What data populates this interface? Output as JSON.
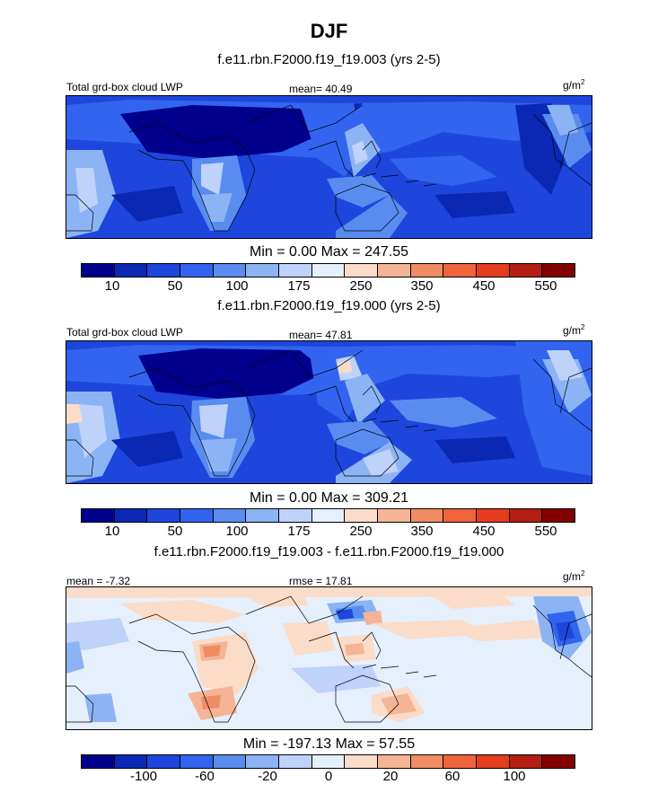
{
  "chart_data": [
    {
      "type": "heatmap",
      "title": "DJF",
      "subtitle": "f.e11.rbn.F2000.f19_f19.003 (yrs 2-5)",
      "left_label": "Total grd-box cloud LWP",
      "center_label": "mean=  40.49",
      "units": "g/m",
      "units_sup": "2",
      "minmax": "Min =   0.00 Max = 247.55",
      "min": 0.0,
      "max": 247.55,
      "mean": 40.49,
      "colorbar": {
        "colors": [
          "#00008c",
          "#0a28b4",
          "#1e46dc",
          "#3264f0",
          "#5a8cf0",
          "#8cb4f5",
          "#bed2fa",
          "#e6f0fc",
          "#fadcc8",
          "#f5b496",
          "#f08c64",
          "#f0643c",
          "#e63c1e",
          "#b41e14",
          "#820000"
        ],
        "ticks": [
          "10",
          "50",
          "100",
          "175",
          "250",
          "350",
          "450",
          "550"
        ]
      }
    },
    {
      "type": "heatmap",
      "subtitle": "f.e11.rbn.F2000.f19_f19.000 (yrs 2-5)",
      "left_label": "Total grd-box cloud LWP",
      "center_label": "mean=  47.81",
      "units": "g/m",
      "units_sup": "2",
      "minmax": "Min =   0.00 Max = 309.21",
      "min": 0.0,
      "max": 309.21,
      "mean": 47.81,
      "colorbar": {
        "colors": [
          "#00008c",
          "#0a28b4",
          "#1e46dc",
          "#3264f0",
          "#5a8cf0",
          "#8cb4f5",
          "#bed2fa",
          "#e6f0fc",
          "#fadcc8",
          "#f5b496",
          "#f08c64",
          "#f0643c",
          "#e63c1e",
          "#b41e14",
          "#820000"
        ],
        "ticks": [
          "10",
          "50",
          "100",
          "175",
          "250",
          "350",
          "450",
          "550"
        ]
      }
    },
    {
      "type": "heatmap",
      "subtitle": "f.e11.rbn.F2000.f19_f19.003 - f.e11.rbn.F2000.f19_f19.000",
      "left_label": "mean =  -7.32",
      "center_label": "rmse =  17.81",
      "units": "g/m",
      "units_sup": "2",
      "minmax": "Min = -197.13 Max =  57.55",
      "min": -197.13,
      "max": 57.55,
      "mean": -7.32,
      "rmse": 17.81,
      "colorbar": {
        "colors": [
          "#00008c",
          "#0a28b4",
          "#1e46dc",
          "#3264f0",
          "#5a8cf0",
          "#8cb4f5",
          "#bed2fa",
          "#e6f0fc",
          "#fadcc8",
          "#f5b496",
          "#f08c64",
          "#f0643c",
          "#e63c1e",
          "#b41e14",
          "#820000"
        ],
        "ticks": [
          "-100",
          "-60",
          "-20",
          "0",
          "20",
          "60",
          "100"
        ]
      }
    }
  ]
}
